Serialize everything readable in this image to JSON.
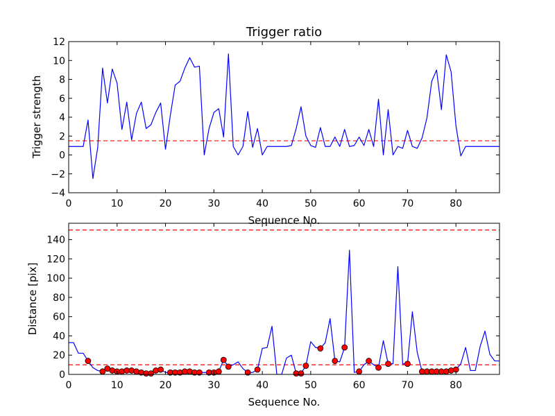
{
  "chart_data": [
    {
      "type": "line",
      "title": "Trigger ratio",
      "xlabel": "Sequence No.",
      "ylabel": "Trigger strength",
      "xlim": [
        0,
        89
      ],
      "ylim": [
        -4,
        12
      ],
      "xticks": [
        0,
        10,
        20,
        30,
        40,
        50,
        60,
        70,
        80
      ],
      "yticks": [
        -4,
        -2,
        0,
        2,
        4,
        6,
        8,
        10,
        12
      ],
      "xtick_labels": [
        "0",
        "10",
        "20",
        "30",
        "40",
        "50",
        "60",
        "70",
        "80"
      ],
      "ytick_labels": [
        "−4",
        "−2",
        "0",
        "2",
        "4",
        "6",
        "8",
        "10",
        "12"
      ],
      "grid": false,
      "series": [
        {
          "color": "#0000ff",
          "style": "solid",
          "x": [
            0,
            1,
            2,
            3,
            4,
            5,
            6,
            7,
            8,
            9,
            10,
            11,
            12,
            13,
            14,
            15,
            16,
            17,
            18,
            19,
            20,
            21,
            22,
            23,
            24,
            25,
            26,
            27,
            28,
            29,
            30,
            31,
            32,
            33,
            34,
            35,
            36,
            37,
            38,
            39,
            40,
            41,
            42,
            43,
            44,
            45,
            46,
            47,
            48,
            49,
            50,
            51,
            52,
            53,
            54,
            55,
            56,
            57,
            58,
            59,
            60,
            61,
            62,
            63,
            64,
            65,
            66,
            67,
            68,
            69,
            70,
            71,
            72,
            73,
            74,
            75,
            76,
            77,
            78,
            79,
            80,
            81,
            82,
            83,
            84,
            85,
            86,
            87,
            88,
            89
          ],
          "y": [
            0.9,
            0.9,
            0.9,
            0.9,
            3.7,
            -2.5,
            0.8,
            9.2,
            5.5,
            9.1,
            7.6,
            2.7,
            5.6,
            1.6,
            4.4,
            5.6,
            2.8,
            3.2,
            4.5,
            5.5,
            0.6,
            4.2,
            7.4,
            7.8,
            9.2,
            10.3,
            9.3,
            9.4,
            0.0,
            2.8,
            4.5,
            4.9,
            1.9,
            10.7,
            0.9,
            0.0,
            0.9,
            4.6,
            0.8,
            2.8,
            0.0,
            0.9,
            0.9,
            0.9,
            0.9,
            0.9,
            1.0,
            2.8,
            5.1,
            2.0,
            1.0,
            0.8,
            2.9,
            0.9,
            0.9,
            1.9,
            0.9,
            2.7,
            0.9,
            1.0,
            1.9,
            1.0,
            2.7,
            0.9,
            5.9,
            0.0,
            4.8,
            0.0,
            0.9,
            0.7,
            2.6,
            0.9,
            0.7,
            1.8,
            3.9,
            7.8,
            9.0,
            4.8,
            10.6,
            8.8,
            3.1,
            -0.1,
            0.9,
            0.9,
            0.9,
            0.9,
            0.9,
            0.9,
            0.9,
            0.9
          ]
        }
      ],
      "reference_lines": [
        {
          "y": 1.5,
          "color": "#ff0000",
          "style": "dashed"
        }
      ]
    },
    {
      "type": "line",
      "title": "",
      "xlabel": "Sequence No.",
      "ylabel": "Distance [pix]",
      "xlim": [
        0,
        89
      ],
      "ylim": [
        0,
        157
      ],
      "xticks": [
        0,
        10,
        20,
        30,
        40,
        50,
        60,
        70,
        80
      ],
      "yticks": [
        0,
        20,
        40,
        60,
        80,
        100,
        120,
        140
      ],
      "xtick_labels": [
        "0",
        "10",
        "20",
        "30",
        "40",
        "50",
        "60",
        "70",
        "80"
      ],
      "ytick_labels": [
        "0",
        "20",
        "40",
        "60",
        "80",
        "100",
        "120",
        "140"
      ],
      "grid": false,
      "series": [
        {
          "color": "#0000ff",
          "style": "solid",
          "x": [
            0,
            1,
            2,
            3,
            4,
            5,
            6,
            7,
            8,
            9,
            10,
            11,
            12,
            13,
            14,
            15,
            16,
            17,
            18,
            19,
            20,
            21,
            22,
            23,
            24,
            25,
            26,
            27,
            28,
            29,
            30,
            31,
            32,
            33,
            34,
            35,
            36,
            37,
            38,
            39,
            40,
            41,
            42,
            43,
            44,
            45,
            46,
            47,
            48,
            49,
            50,
            51,
            52,
            53,
            54,
            55,
            56,
            57,
            58,
            59,
            60,
            61,
            62,
            63,
            64,
            65,
            66,
            67,
            68,
            69,
            70,
            71,
            72,
            73,
            74,
            75,
            76,
            77,
            78,
            79,
            80,
            81,
            82,
            83,
            84,
            85,
            86,
            87,
            88,
            89
          ],
          "y": [
            33,
            33,
            22,
            22,
            14,
            7,
            4,
            3,
            6,
            4,
            3,
            3,
            4,
            4,
            3,
            2,
            1,
            1,
            4,
            5,
            2,
            2,
            2,
            2,
            3,
            3,
            2,
            2,
            2,
            2,
            2,
            3,
            15,
            8,
            10,
            13,
            6,
            2,
            2,
            5,
            27,
            28,
            50,
            0,
            0,
            17,
            20,
            1,
            1,
            9,
            34,
            28,
            27,
            33,
            58,
            14,
            13,
            28,
            129,
            2,
            3,
            10,
            14,
            10,
            7,
            35,
            11,
            11,
            112,
            11,
            11,
            65,
            23,
            3,
            3,
            3,
            3,
            3,
            3,
            4,
            5,
            11,
            28,
            4,
            4,
            29,
            45,
            21,
            14,
            14
          ]
        }
      ],
      "markers": {
        "color": "#ff0000",
        "edge_color": "#000000",
        "x": [
          4,
          7,
          8,
          9,
          10,
          11,
          12,
          13,
          14,
          15,
          16,
          17,
          18,
          19,
          21,
          22,
          23,
          24,
          25,
          26,
          27,
          29,
          30,
          31,
          32,
          33,
          37,
          39,
          47,
          48,
          49,
          52,
          55,
          57,
          60,
          62,
          64,
          66,
          70,
          73,
          74,
          75,
          76,
          77,
          78,
          79,
          80
        ],
        "y": [
          14,
          3,
          6,
          4,
          3,
          3,
          4,
          4,
          3,
          2,
          1,
          1,
          4,
          5,
          2,
          2,
          2,
          3,
          3,
          2,
          2,
          2,
          2,
          3,
          15,
          8,
          2,
          5,
          1,
          1,
          9,
          27,
          14,
          28,
          3,
          14,
          7,
          11,
          11,
          3,
          3,
          3,
          3,
          3,
          3,
          4,
          5
        ]
      },
      "reference_lines": [
        {
          "y": 150,
          "color": "#ff0000",
          "style": "dashed"
        },
        {
          "y": 10,
          "color": "#ff0000",
          "style": "dashed"
        }
      ]
    }
  ]
}
